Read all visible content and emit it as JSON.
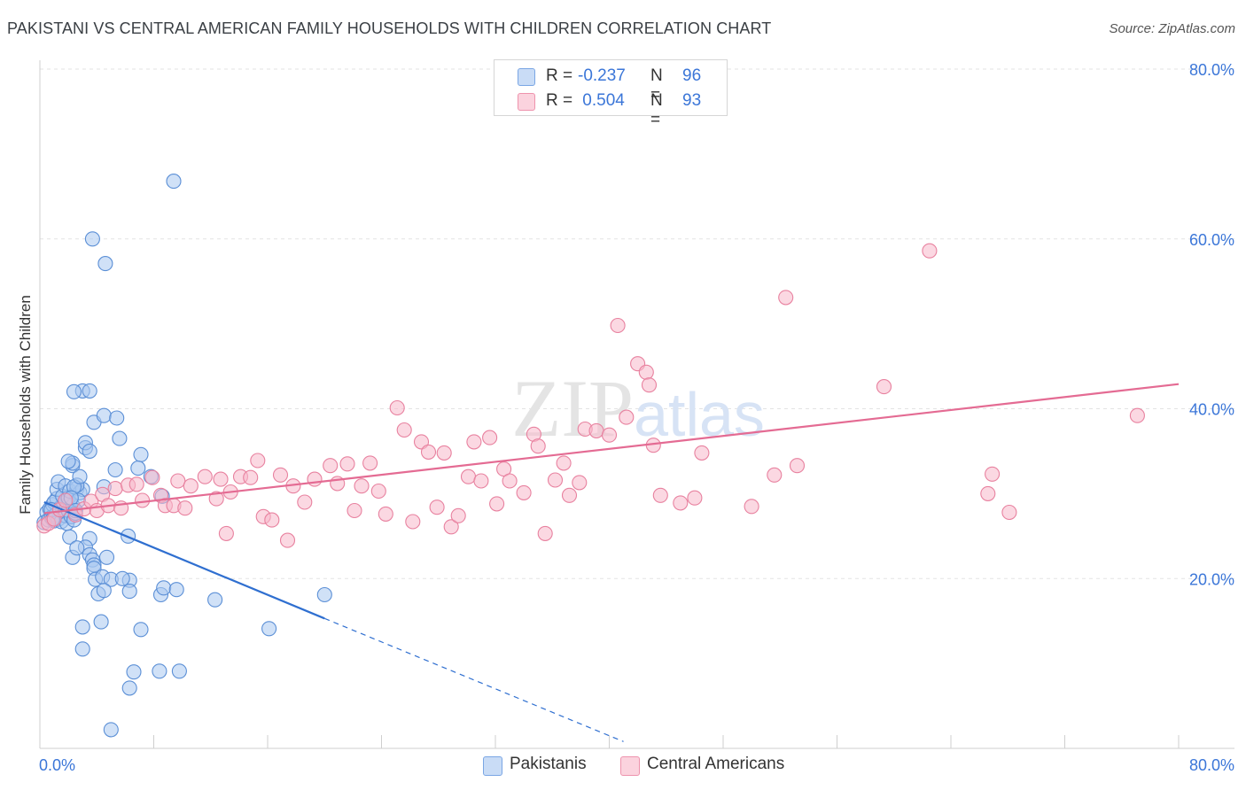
{
  "title": "PAKISTANI VS CENTRAL AMERICAN FAMILY HOUSEHOLDS WITH CHILDREN CORRELATION CHART",
  "source": "Source: ZipAtlas.com",
  "watermark": "ZIPatlas",
  "legend": {
    "rows": [
      {
        "r_label": "R = ",
        "r_value": "-0.237",
        "n_label": "N = ",
        "n_value": "96",
        "color": "#a9c8f0"
      },
      {
        "r_label": "R = ",
        "r_value": " 0.504",
        "n_label": "N = ",
        "n_value": "93",
        "color": "#f7b8cb"
      }
    ]
  },
  "bottom_legend": [
    {
      "label": "Pakistanis",
      "color": "#a9c8f0"
    },
    {
      "label": "Central Americans",
      "color": "#f7b8cb"
    }
  ],
  "chart_data": {
    "type": "scatter",
    "ylabel": "Family Households with Children",
    "xlim": [
      0,
      80
    ],
    "ylim": [
      0,
      80
    ],
    "x_tick_labels": [
      "0.0%",
      "80.0%"
    ],
    "y_tick_labels": [
      {
        "value": 20,
        "label": "20.0%"
      },
      {
        "value": 40,
        "label": "40.0%"
      },
      {
        "value": 60,
        "label": "60.0%"
      },
      {
        "value": 80,
        "label": "80.0%"
      }
    ],
    "grid": true,
    "series": [
      {
        "name": "Pakistanis",
        "fill": "#a9c8f0",
        "stroke": "#5b8fd6",
        "trend": {
          "x0": 0.3,
          "y0": 29.0,
          "x1": 20.0,
          "y1": 15.3,
          "dash_to_x": 41.0,
          "dash_to_y": 0.8,
          "color": "#2f6fd0"
        },
        "points": [
          [
            0.3,
            26.6
          ],
          [
            0.5,
            27.8
          ],
          [
            0.6,
            26.9
          ],
          [
            0.7,
            28.2
          ],
          [
            0.8,
            27.2
          ],
          [
            0.9,
            28.7
          ],
          [
            1.0,
            26.8
          ],
          [
            1.1,
            27.5
          ],
          [
            1.2,
            29.4
          ],
          [
            1.3,
            27.0
          ],
          [
            1.4,
            28.3
          ],
          [
            1.5,
            26.7
          ],
          [
            1.6,
            27.9
          ],
          [
            1.7,
            28.9
          ],
          [
            1.8,
            27.4
          ],
          [
            1.9,
            26.5
          ],
          [
            2.0,
            28.0
          ],
          [
            2.1,
            29.0
          ],
          [
            2.2,
            27.3
          ],
          [
            2.3,
            28.6
          ],
          [
            2.4,
            26.9
          ],
          [
            2.5,
            27.7
          ],
          [
            1.0,
            29.0
          ],
          [
            1.2,
            30.5
          ],
          [
            1.3,
            31.4
          ],
          [
            1.6,
            29.7
          ],
          [
            1.8,
            30.9
          ],
          [
            2.0,
            29.5
          ],
          [
            2.1,
            30.3
          ],
          [
            2.6,
            30.6
          ],
          [
            2.8,
            30.1
          ],
          [
            3.0,
            30.5
          ],
          [
            2.6,
            31.0
          ],
          [
            2.4,
            30.8
          ],
          [
            2.7,
            29.2
          ],
          [
            2.2,
            29.5
          ],
          [
            0.8,
            28.1
          ],
          [
            0.9,
            27.0
          ],
          [
            2.5,
            28.0
          ],
          [
            2.3,
            33.3
          ],
          [
            2.3,
            33.6
          ],
          [
            2.0,
            33.8
          ],
          [
            2.8,
            32.0
          ],
          [
            3.2,
            35.4
          ],
          [
            3.2,
            36.0
          ],
          [
            3.5,
            35.0
          ],
          [
            3.8,
            38.4
          ],
          [
            4.5,
            39.2
          ],
          [
            5.4,
            38.9
          ],
          [
            5.6,
            36.5
          ],
          [
            7.1,
            34.6
          ],
          [
            6.9,
            33.0
          ],
          [
            5.3,
            32.8
          ],
          [
            4.5,
            30.8
          ],
          [
            3.5,
            24.7
          ],
          [
            3.2,
            23.7
          ],
          [
            3.5,
            22.8
          ],
          [
            2.1,
            24.9
          ],
          [
            2.3,
            22.5
          ],
          [
            2.6,
            23.6
          ],
          [
            3.7,
            22.2
          ],
          [
            3.8,
            21.6
          ],
          [
            4.7,
            22.5
          ],
          [
            3.8,
            21.2
          ],
          [
            3.9,
            19.9
          ],
          [
            4.4,
            20.2
          ],
          [
            5.0,
            19.9
          ],
          [
            6.3,
            19.8
          ],
          [
            5.8,
            20.0
          ],
          [
            6.2,
            25.0
          ],
          [
            4.1,
            18.2
          ],
          [
            4.5,
            18.6
          ],
          [
            6.3,
            18.5
          ],
          [
            8.5,
            18.1
          ],
          [
            8.7,
            18.9
          ],
          [
            9.6,
            18.7
          ],
          [
            12.3,
            17.5
          ],
          [
            16.1,
            14.1
          ],
          [
            20.0,
            18.1
          ],
          [
            3.0,
            42.1
          ],
          [
            2.4,
            42.0
          ],
          [
            3.5,
            42.1
          ],
          [
            4.3,
            14.9
          ],
          [
            3.0,
            14.3
          ],
          [
            7.1,
            14.0
          ],
          [
            3.0,
            11.7
          ],
          [
            6.6,
            9.0
          ],
          [
            8.4,
            9.1
          ],
          [
            9.8,
            9.1
          ],
          [
            6.3,
            7.1
          ],
          [
            5.0,
            2.2
          ],
          [
            3.7,
            60.0
          ],
          [
            4.6,
            57.1
          ],
          [
            9.4,
            66.8
          ],
          [
            8.6,
            29.7
          ],
          [
            7.8,
            32.0
          ]
        ]
      },
      {
        "name": "Central Americans",
        "fill": "#f7b8cb",
        "stroke": "#e8819f",
        "trend": {
          "x0": 0.3,
          "y0": 27.7,
          "x1": 80.0,
          "y1": 42.9,
          "color": "#e46b93"
        },
        "points": [
          [
            0.3,
            26.2
          ],
          [
            0.6,
            26.5
          ],
          [
            1.0,
            27.0
          ],
          [
            1.4,
            28.1
          ],
          [
            1.8,
            29.2
          ],
          [
            2.5,
            27.5
          ],
          [
            3.1,
            28.2
          ],
          [
            3.6,
            29.1
          ],
          [
            4.0,
            28.0
          ],
          [
            4.4,
            29.9
          ],
          [
            4.8,
            28.6
          ],
          [
            5.3,
            30.6
          ],
          [
            5.7,
            28.3
          ],
          [
            6.2,
            31.0
          ],
          [
            6.8,
            31.1
          ],
          [
            7.2,
            29.2
          ],
          [
            7.9,
            31.9
          ],
          [
            8.5,
            29.8
          ],
          [
            8.8,
            28.6
          ],
          [
            9.4,
            28.6
          ],
          [
            9.7,
            31.5
          ],
          [
            10.2,
            28.3
          ],
          [
            10.6,
            30.9
          ],
          [
            11.6,
            32.0
          ],
          [
            12.4,
            29.4
          ],
          [
            12.7,
            31.7
          ],
          [
            13.1,
            25.3
          ],
          [
            13.4,
            30.2
          ],
          [
            14.1,
            32.0
          ],
          [
            14.8,
            31.9
          ],
          [
            15.3,
            33.9
          ],
          [
            15.7,
            27.3
          ],
          [
            16.3,
            26.9
          ],
          [
            16.9,
            32.2
          ],
          [
            17.4,
            24.5
          ],
          [
            17.8,
            30.9
          ],
          [
            18.6,
            29.0
          ],
          [
            19.3,
            31.7
          ],
          [
            20.4,
            33.3
          ],
          [
            20.9,
            31.2
          ],
          [
            21.6,
            33.5
          ],
          [
            22.1,
            28.0
          ],
          [
            22.6,
            30.9
          ],
          [
            23.2,
            33.6
          ],
          [
            23.8,
            30.3
          ],
          [
            24.3,
            27.6
          ],
          [
            25.1,
            40.1
          ],
          [
            25.6,
            37.5
          ],
          [
            26.2,
            26.7
          ],
          [
            26.8,
            36.1
          ],
          [
            27.3,
            34.9
          ],
          [
            27.9,
            28.4
          ],
          [
            28.4,
            34.8
          ],
          [
            28.9,
            26.1
          ],
          [
            29.4,
            27.4
          ],
          [
            30.1,
            32.0
          ],
          [
            30.5,
            36.1
          ],
          [
            31.0,
            31.5
          ],
          [
            31.6,
            36.6
          ],
          [
            32.1,
            28.8
          ],
          [
            32.6,
            32.9
          ],
          [
            33.0,
            31.5
          ],
          [
            34.0,
            30.1
          ],
          [
            34.7,
            37.0
          ],
          [
            35.0,
            35.6
          ],
          [
            35.5,
            25.3
          ],
          [
            36.2,
            31.6
          ],
          [
            36.8,
            33.6
          ],
          [
            37.2,
            29.8
          ],
          [
            37.9,
            31.3
          ],
          [
            38.3,
            37.6
          ],
          [
            39.1,
            37.4
          ],
          [
            40.0,
            36.9
          ],
          [
            40.6,
            49.8
          ],
          [
            41.2,
            39.0
          ],
          [
            42.0,
            45.3
          ],
          [
            42.6,
            44.3
          ],
          [
            42.8,
            42.8
          ],
          [
            43.1,
            35.7
          ],
          [
            43.6,
            29.8
          ],
          [
            45.0,
            28.9
          ],
          [
            46.0,
            29.5
          ],
          [
            46.5,
            34.8
          ],
          [
            50.0,
            28.5
          ],
          [
            51.6,
            32.2
          ],
          [
            52.4,
            53.1
          ],
          [
            53.2,
            33.3
          ],
          [
            59.3,
            42.6
          ],
          [
            62.5,
            58.6
          ],
          [
            66.6,
            30.0
          ],
          [
            66.9,
            32.3
          ],
          [
            68.1,
            27.8
          ],
          [
            77.1,
            39.2
          ]
        ]
      }
    ]
  }
}
